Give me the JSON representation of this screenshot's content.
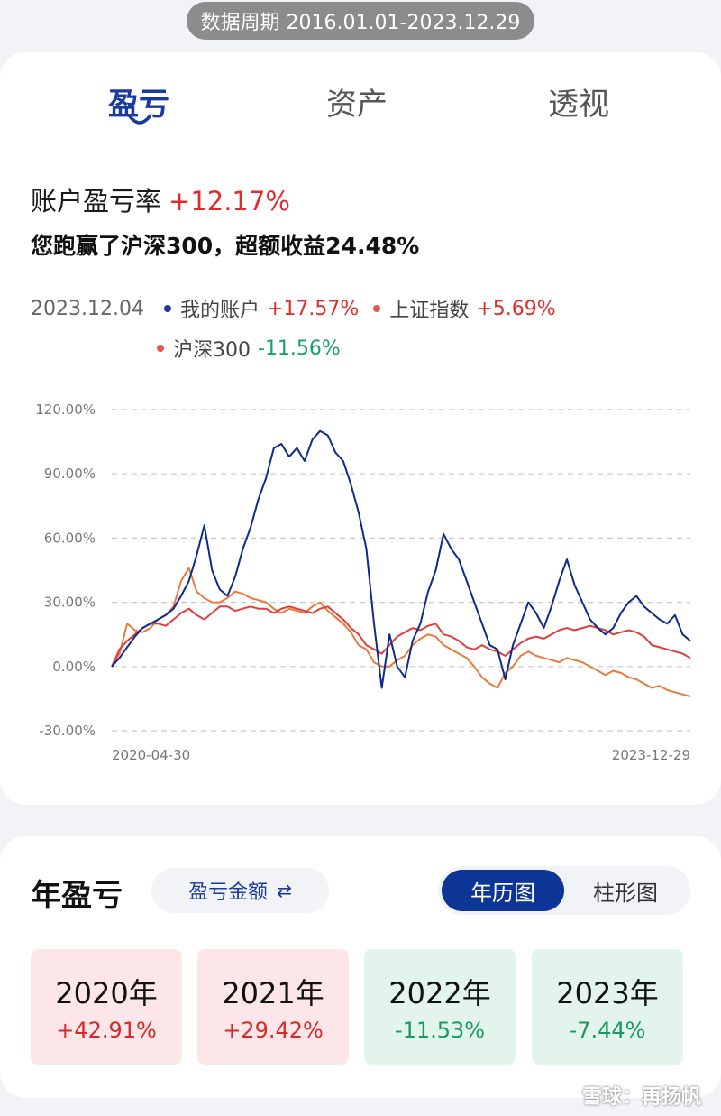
{
  "period": "数据周期 2016.01.01-2023.12.29",
  "tabs": [
    {
      "label": "盈亏",
      "active": true
    },
    {
      "label": "资产",
      "active": false
    },
    {
      "label": "透视",
      "active": false
    }
  ],
  "summary": {
    "rate_label": "账户盈亏率",
    "rate_value": "+12.17%",
    "beat_text": "您跑赢了沪深300，超额收益24.48%"
  },
  "legend": {
    "date": "2023.12.04",
    "items": [
      {
        "name": "我的账户",
        "value": "+17.57%",
        "color": "#1a3a9c",
        "dir": "up"
      },
      {
        "name": "上证指数",
        "value": "+5.69%",
        "color": "#e8584a",
        "dir": "up"
      },
      {
        "name": "沪深300",
        "value": "-11.56%",
        "color": "#e8584a",
        "dir": "down"
      }
    ]
  },
  "chart_data": {
    "type": "line",
    "title": "",
    "xlabel": "",
    "ylabel": "",
    "x_start_label": "2020-04-30",
    "x_end_label": "2023-12-29",
    "y_ticks": [
      "120.00%",
      "90.00%",
      "60.00%",
      "30.00%",
      "0.00%",
      "-30.00%"
    ],
    "ylim": [
      -30,
      120
    ],
    "grid": true,
    "series": [
      {
        "name": "我的账户",
        "color": "#0e2a8c",
        "values": [
          0,
          4,
          9,
          14,
          18,
          20,
          22,
          24,
          27,
          33,
          40,
          52,
          66,
          45,
          36,
          33,
          42,
          55,
          65,
          78,
          88,
          102,
          104,
          98,
          102,
          96,
          106,
          110,
          108,
          100,
          96,
          85,
          72,
          55,
          20,
          -10,
          15,
          0,
          -5,
          12,
          20,
          35,
          45,
          62,
          55,
          50,
          40,
          30,
          20,
          10,
          8,
          -6,
          10,
          20,
          30,
          25,
          18,
          28,
          40,
          50,
          38,
          30,
          22,
          18,
          15,
          18,
          25,
          30,
          33,
          28,
          25,
          22,
          20,
          24,
          15,
          12
        ]
      },
      {
        "name": "上证指数",
        "color": "#e03d3d",
        "values": [
          0,
          8,
          12,
          15,
          18,
          20,
          20,
          19,
          22,
          25,
          27,
          24,
          22,
          25,
          28,
          28,
          26,
          27,
          28,
          27,
          27,
          25,
          27,
          28,
          27,
          26,
          25,
          27,
          28,
          25,
          22,
          18,
          15,
          10,
          8,
          6,
          10,
          14,
          16,
          18,
          17,
          19,
          20,
          15,
          14,
          12,
          9,
          8,
          10,
          8,
          7,
          5,
          8,
          11,
          13,
          14,
          13,
          15,
          17,
          18,
          17,
          18,
          19,
          18,
          17,
          15,
          16,
          17,
          16,
          14,
          10,
          9,
          8,
          7,
          6,
          4
        ]
      },
      {
        "name": "沪深300",
        "color": "#ea7a3a",
        "values": [
          0,
          6,
          20,
          17,
          16,
          18,
          22,
          24,
          28,
          40,
          46,
          35,
          32,
          30,
          30,
          32,
          35,
          34,
          32,
          31,
          30,
          27,
          25,
          27,
          26,
          25,
          28,
          30,
          26,
          23,
          20,
          16,
          10,
          8,
          2,
          0,
          0,
          3,
          5,
          10,
          13,
          15,
          14,
          10,
          8,
          6,
          4,
          0,
          -5,
          -8,
          -10,
          -3,
          0,
          5,
          7,
          5,
          4,
          3,
          2,
          4,
          3,
          2,
          0,
          -2,
          -4,
          -2,
          -3,
          -5,
          -6,
          -8,
          -10,
          -9,
          -11,
          -12,
          -13,
          -14
        ]
      }
    ]
  },
  "yearly": {
    "title": "年盈亏",
    "amount_toggle": "盈亏金额",
    "amount_toggle_icon": "⇄",
    "seg_on": "年历图",
    "seg_off": "柱形图",
    "cards": [
      {
        "year": "2020年",
        "value": "+42.91%",
        "sign": "pos"
      },
      {
        "year": "2021年",
        "value": "+29.42%",
        "sign": "pos"
      },
      {
        "year": "2022年",
        "value": "-11.53%",
        "sign": "neg"
      },
      {
        "year": "2023年",
        "value": "-7.44%",
        "sign": "neg"
      }
    ]
  },
  "watermark": "雪球：再扬帆"
}
